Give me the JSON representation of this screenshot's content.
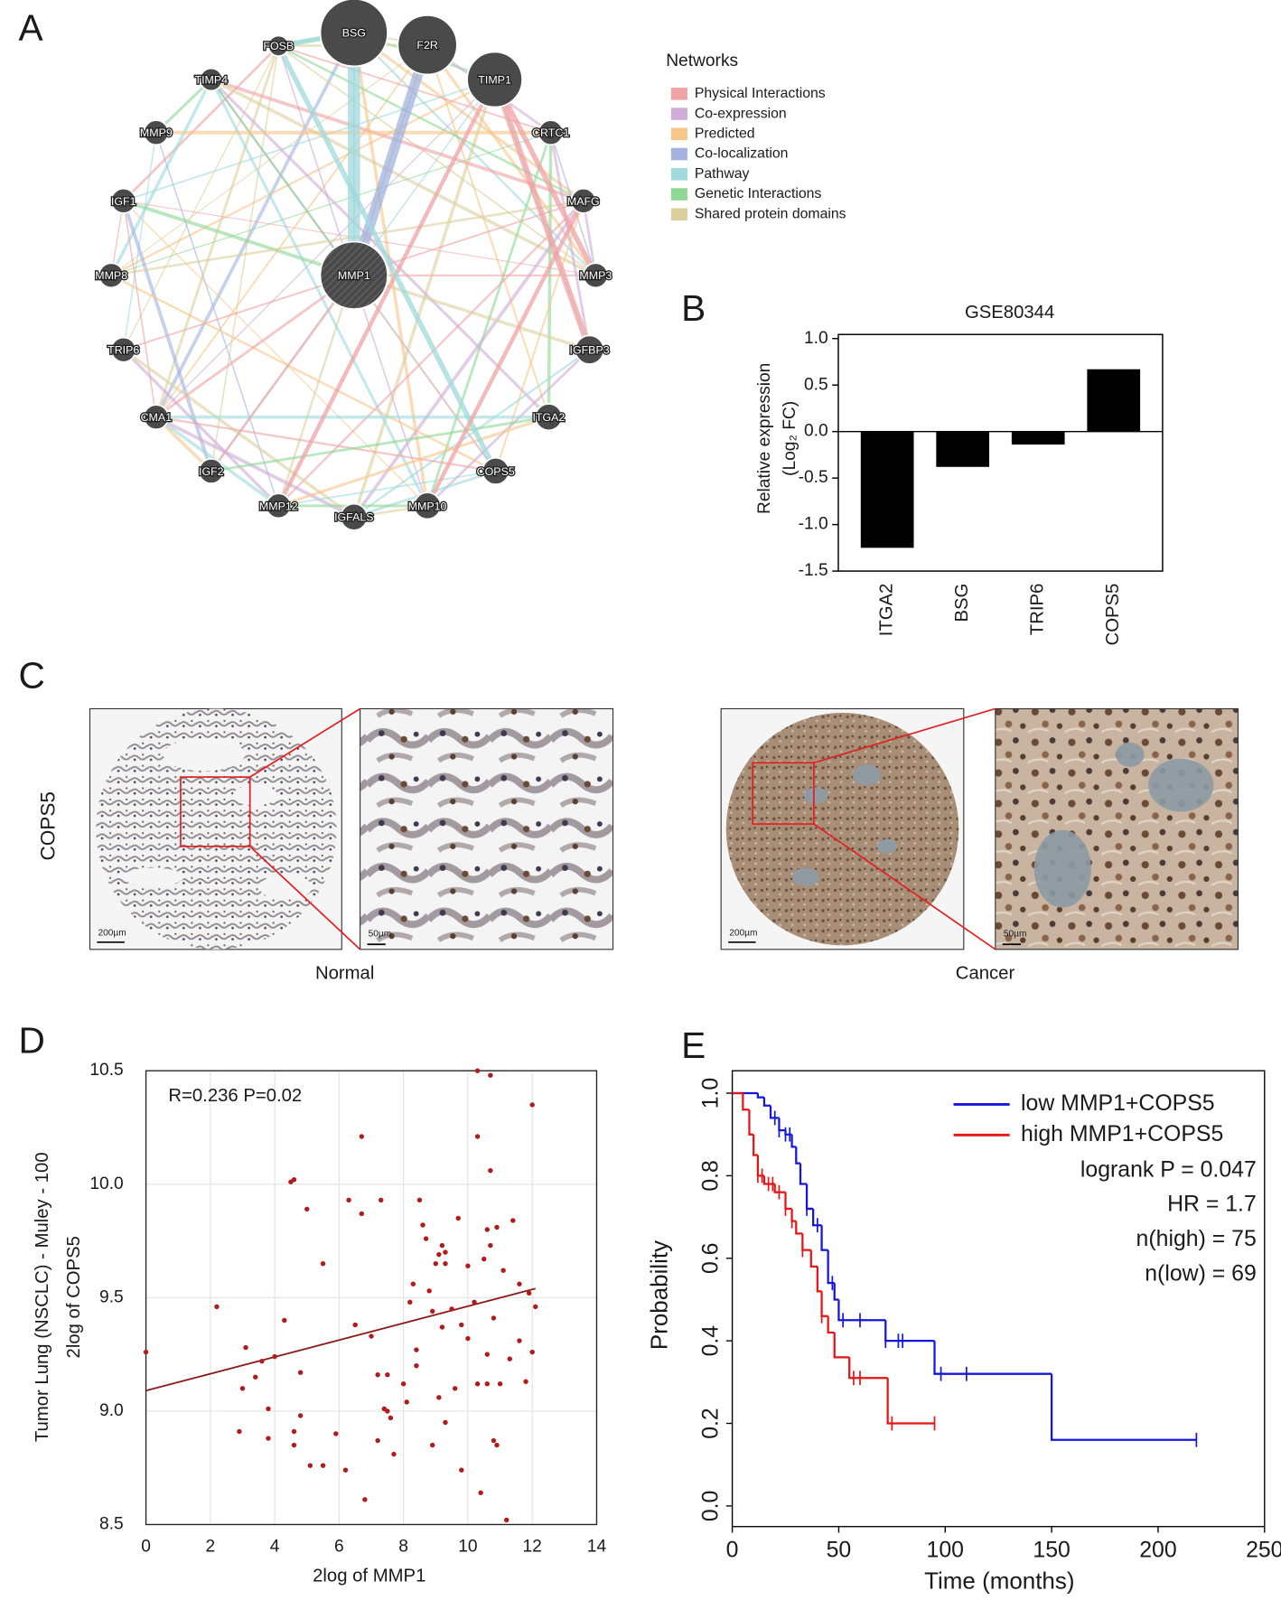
{
  "panel_labels": [
    "A",
    "B",
    "C",
    "D",
    "E"
  ],
  "network": {
    "nodes": [
      "BSG",
      "F2R",
      "TIMP1",
      "FOSB",
      "TIMP4",
      "MMP9",
      "CRTC1",
      "IGF1",
      "MAFG",
      "MMP8",
      "MMP3",
      "TRIP6",
      "IGFBP3",
      "CMA1",
      "ITGA2",
      "IGF2",
      "COPS5",
      "MMP12",
      "IGFALS",
      "MMP10",
      "MMP1"
    ],
    "legend_title": "Networks",
    "legend": [
      {
        "name": "Physical Interactions",
        "color": "#f0a3a5"
      },
      {
        "name": "Co-expression",
        "color": "#cfadd8"
      },
      {
        "name": "Predicted",
        "color": "#f7c688"
      },
      {
        "name": "Co-localization",
        "color": "#a3b3df"
      },
      {
        "name": "Pathway",
        "color": "#9fdadd"
      },
      {
        "name": "Genetic Interactions",
        "color": "#8ed895"
      },
      {
        "name": "Shared protein domains",
        "color": "#dbd09d"
      }
    ]
  },
  "ihc": {
    "row_label": "COPS5",
    "groups": [
      {
        "label": "Normal",
        "scale_bars": [
          "200µm",
          "50µm"
        ]
      },
      {
        "label": "Cancer",
        "scale_bars": [
          "200µm",
          "50µm"
        ]
      }
    ]
  },
  "chart_data": [
    {
      "type": "bar",
      "title": "GSE80344",
      "ylabel": [
        "Relative expression",
        "(Log₂ FC)"
      ],
      "categories": [
        "ITGA2",
        "BSG",
        "TRIP6",
        "COPS5"
      ],
      "values": [
        -1.25,
        -0.38,
        -0.14,
        0.67
      ],
      "color": "#000000",
      "ylim": [
        -1.5,
        1
      ],
      "yticks": [
        {
          "value": 1,
          "label": "1.0"
        },
        0.5,
        {
          "value": 0,
          "label": "0.0"
        },
        -0.5,
        {
          "value": -1,
          "label": "-1.0"
        },
        -1.5
      ]
    },
    {
      "type": "scatter",
      "annotation": "R=0.236 P=0.02",
      "xlabel": "2log of MMP1",
      "ylabel": [
        "Tumor Lung (NSCLC) - Muley - 100",
        "2log of COPS5"
      ],
      "x": [
        0,
        2.2,
        2.9,
        3.0,
        3.1,
        3.4,
        3.6,
        3.8,
        3.8,
        4.0,
        4.3,
        4.5,
        4.6,
        4.6,
        4.6,
        4.8,
        4.8,
        5.0,
        5.1,
        5.5,
        5.5,
        5.9,
        6.2,
        6.3,
        6.5,
        6.7,
        6.7,
        6.8,
        7.0,
        7.2,
        7.2,
        7.3,
        7.4,
        7.5,
        7.5,
        7.6,
        7.7,
        8.0,
        8.1,
        8.2,
        8.3,
        8.4,
        8.4,
        8.5,
        8.6,
        8.7,
        8.8,
        8.9,
        8.9,
        9.0,
        9.1,
        9.1,
        9.2,
        9.2,
        9.3,
        9.3,
        9.3,
        9.5,
        9.6,
        9.7,
        9.8,
        9.8,
        10.0,
        10.0,
        10.2,
        10.3,
        10.3,
        10.3,
        10.4,
        10.5,
        10.6,
        10.6,
        10.6,
        10.7,
        10.7,
        10.7,
        10.8,
        10.8,
        10.9,
        10.9,
        11.0,
        11.1,
        11.2,
        11.3,
        11.4,
        11.6,
        11.6,
        11.8,
        11.9,
        12.0,
        12.0,
        12.1
      ],
      "values": [
        9.26,
        9.46,
        8.91,
        9.1,
        9.28,
        9.15,
        9.22,
        9.01,
        8.88,
        9.24,
        9.4,
        10.01,
        10.02,
        8.85,
        8.91,
        9.17,
        8.98,
        9.89,
        8.76,
        9.65,
        8.76,
        8.9,
        8.74,
        9.93,
        9.38,
        10.21,
        9.87,
        8.61,
        9.33,
        8.87,
        9.16,
        9.93,
        9.01,
        9.0,
        9.16,
        8.97,
        8.81,
        9.12,
        9.04,
        9.48,
        9.56,
        9.27,
        9.2,
        9.93,
        9.82,
        9.76,
        9.53,
        8.85,
        9.44,
        9.65,
        9.06,
        9.69,
        9.73,
        9.37,
        9.65,
        8.95,
        9.7,
        9.45,
        9.1,
        9.85,
        9.38,
        8.74,
        9.64,
        9.32,
        9.48,
        10.5,
        9.12,
        10.21,
        8.64,
        9.67,
        9.25,
        9.8,
        9.12,
        10.48,
        10.06,
        9.73,
        9.41,
        8.87,
        8.85,
        9.81,
        9.12,
        9.62,
        8.52,
        9.23,
        9.84,
        9.56,
        9.31,
        9.13,
        9.52,
        10.35,
        9.26,
        9.46
      ],
      "color": "#b01c1c",
      "fit": {
        "x": [
          0,
          12.1
        ],
        "values": [
          9.09,
          9.54
        ],
        "color": "#8b1a1a"
      },
      "xlim": [
        0,
        14
      ],
      "xticks": [
        0,
        2,
        4,
        6,
        8,
        10,
        12,
        14
      ],
      "ylim": [
        8.5,
        10.5
      ],
      "yticks": [
        8.5,
        {
          "value": 9,
          "label": "9.0"
        },
        9.5,
        {
          "value": 10,
          "label": "10.0"
        },
        10.5
      ],
      "grid": true
    },
    {
      "type": "survival",
      "xlabel": "Time (months)",
      "ylabel": "Probability",
      "series": [
        {
          "name": "low MMP1+COPS5",
          "color": "#1515e0",
          "x": [
            0,
            12,
            15,
            18,
            22,
            25,
            28,
            30,
            32,
            35,
            38,
            42,
            45,
            48,
            50,
            72,
            95,
            150,
            218
          ],
          "values": [
            1.0,
            0.99,
            0.97,
            0.94,
            0.91,
            0.9,
            0.87,
            0.83,
            0.78,
            0.72,
            0.68,
            0.62,
            0.54,
            0.5,
            0.45,
            0.4,
            0.32,
            0.16,
            0.16
          ],
          "censored": [
            20,
            22,
            25,
            27,
            35,
            40,
            47,
            52,
            60,
            72,
            78,
            80,
            98,
            110,
            218
          ]
        },
        {
          "name": "high MMP1+COPS5",
          "color": "#e81414",
          "x": [
            0,
            5,
            8,
            10,
            12,
            15,
            20,
            25,
            28,
            30,
            33,
            37,
            40,
            42,
            45,
            48,
            55,
            73,
            95
          ],
          "values": [
            1.0,
            0.96,
            0.9,
            0.85,
            0.8,
            0.78,
            0.76,
            0.72,
            0.69,
            0.66,
            0.62,
            0.58,
            0.52,
            0.46,
            0.42,
            0.36,
            0.31,
            0.2,
            0.2
          ],
          "censored": [
            12,
            14,
            17,
            19,
            22,
            25,
            28,
            33,
            42,
            57,
            60,
            75,
            95
          ]
        }
      ],
      "annotations": [
        "logrank P = 0.047",
        "HR = 1.7",
        "n(high) = 75",
        "n(low) = 69"
      ],
      "xlim": [
        0,
        250
      ],
      "xticks": [
        0,
        50,
        100,
        150,
        200,
        250
      ],
      "ylim": [
        -0.05,
        1
      ],
      "yticks": [
        {
          "value": 0,
          "label": "0.0"
        },
        0.2,
        0.4,
        0.6,
        0.8,
        {
          "value": 1,
          "label": "1.0"
        }
      ]
    }
  ]
}
